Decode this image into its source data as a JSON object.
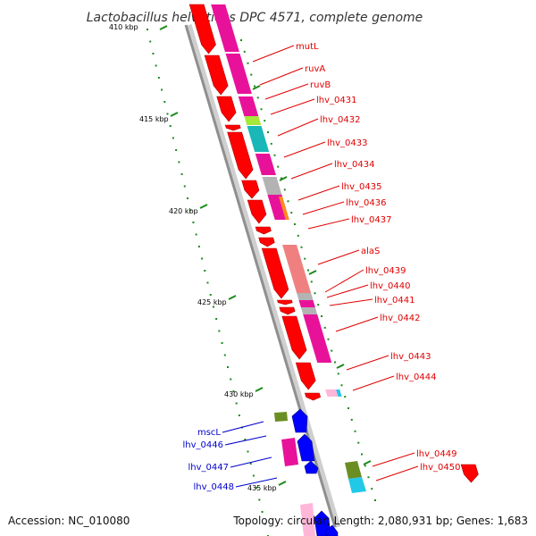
{
  "title": "Lactobacillus helveticus DPC 4571, complete genome",
  "accession": "Accession: NC_010080",
  "summary": "Topology: circular; Length: 2,080,931 bp; Genes: 1,683",
  "kbp_labels": [
    "410 kbp",
    "415 kbp",
    "420 kbp",
    "425 kbp",
    "430 kbp",
    "435 kbp"
  ],
  "right_genes": [
    "mutL",
    "ruvA",
    "ruvB",
    "lhv_0431",
    "lhv_0432",
    "lhv_0433",
    "lhv_0434",
    "lhv_0435",
    "lhv_0436",
    "lhv_0437",
    "alaS",
    "lhv_0439",
    "lhv_0440",
    "lhv_0441",
    "lhv_0442",
    "lhv_0443",
    "lhv_0444",
    "lhv_0449",
    "lhv_0450"
  ],
  "left_genes": [
    "mscL",
    "lhv_0446",
    "lhv_0447",
    "lhv_0448"
  ],
  "colors": {
    "strand_forward": "#ff0000",
    "strand_reverse": "#0000ff",
    "label_forward": "#e00000",
    "label_reverse": "#0000cc",
    "backbone": "#9a9a9a",
    "gc_skew_ticks": "#1a8a1a",
    "cog_magenta": "#e8129a",
    "cog_lime": "#a6e83a",
    "cog_teal": "#19b7b7",
    "cog_grey": "#b3b3b3",
    "cog_salmon": "#f08080",
    "cog_olive": "#6b8e23",
    "cog_cyan": "#22c8e8",
    "cog_orange": "#ff8c1a",
    "cog_pink": "#ffb6d9"
  }
}
